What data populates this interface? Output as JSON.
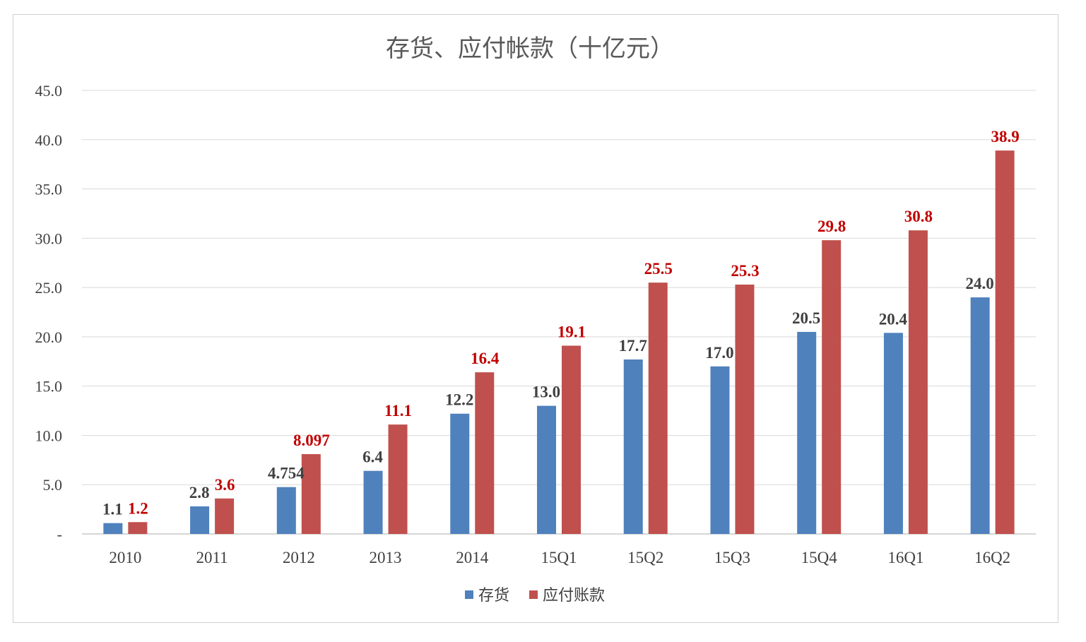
{
  "chart_data": {
    "type": "bar",
    "title": "存货、应付帐款（十亿元）",
    "categories": [
      "2010",
      "2011",
      "2012",
      "2013",
      "2014",
      "15Q1",
      "15Q2",
      "15Q3",
      "15Q4",
      "16Q1",
      "16Q2"
    ],
    "series": [
      {
        "name": "存货",
        "color": "#4f81bd",
        "label_color": "#404040",
        "values": [
          1.1,
          2.8,
          4.754,
          6.4,
          12.2,
          13.0,
          17.7,
          17.0,
          20.5,
          20.4,
          24.0
        ],
        "labels": [
          "1.1",
          "2.8",
          "4.754",
          "6.4",
          "12.2",
          "13.0",
          "17.7",
          "17.0",
          "20.5",
          "20.4",
          "24.0"
        ]
      },
      {
        "name": "应付账款",
        "color": "#c0504d",
        "label_color": "#c00000",
        "values": [
          1.2,
          3.6,
          8.097,
          11.1,
          16.4,
          19.1,
          25.5,
          25.3,
          29.8,
          30.8,
          38.9
        ],
        "labels": [
          "1.2",
          "3.6",
          "8.097",
          "11.1",
          "16.4",
          "19.1",
          "25.5",
          "25.3",
          "29.8",
          "30.8",
          "38.9"
        ]
      }
    ],
    "yticks": [
      0,
      5,
      10,
      15,
      20,
      25,
      30,
      35,
      40,
      45
    ],
    "ytick_labels": [
      "-",
      "5.0",
      "10.0",
      "15.0",
      "20.0",
      "25.0",
      "30.0",
      "35.0",
      "40.0",
      "45.0"
    ],
    "ylim": [
      0,
      45
    ],
    "grid": true,
    "legend": "bottom-center",
    "xlabel": "",
    "ylabel": ""
  }
}
